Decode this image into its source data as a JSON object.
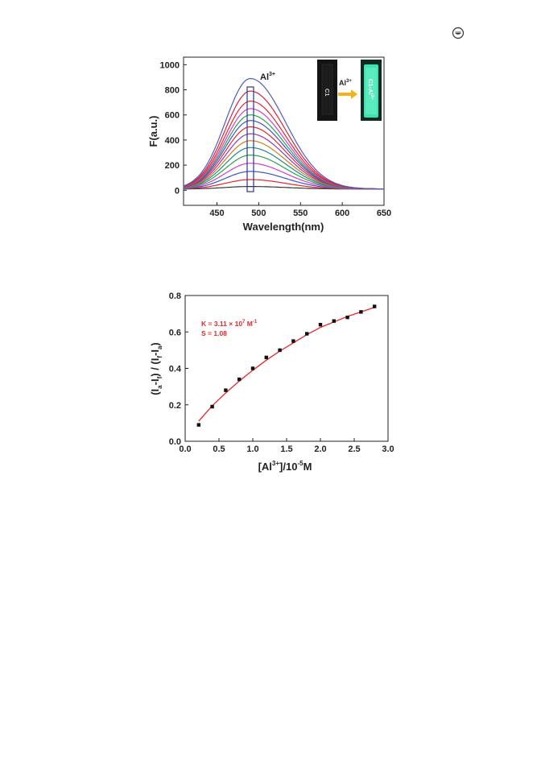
{
  "chart_data": [
    {
      "type": "line",
      "xlabel": "Wavelength(nm)",
      "ylabel": "F(a.u.)",
      "xlim": [
        410,
        650
      ],
      "ylim": [
        -120,
        1060
      ],
      "x_ticks": [
        450,
        500,
        550,
        600,
        650
      ],
      "y_ticks": [
        0,
        200,
        400,
        600,
        800,
        1000
      ],
      "peak_wavelength": 490,
      "peak_intensities": [
        20,
        75,
        140,
        205,
        270,
        330,
        385,
        440,
        495,
        545,
        590,
        640,
        700,
        780,
        880
      ],
      "series_colors": [
        "#333333",
        "#e8262b",
        "#3a53c9",
        "#d43cd0",
        "#27a34a",
        "#1f8a8a",
        "#d67a1a",
        "#8c3bb6",
        "#e8262b",
        "#3a53c9",
        "#27a34a",
        "#d43cd0",
        "#e8262b",
        "#d0263e",
        "#4a60c0"
      ],
      "annotations": {
        "ion_label": "Al",
        "ion_superscript": "3+"
      },
      "inset": {
        "left_vial_label": "C1",
        "arrow_label": "Al",
        "arrow_superscript": "3+",
        "right_vial_label": "C1-Al",
        "right_vial_superscript": "3+"
      }
    },
    {
      "type": "scatter",
      "xlabel_main": "[Al",
      "xlabel_sup": "3+",
      "xlabel_mid": "]/10",
      "xlabel_sup2": "-5",
      "xlabel_end": "M",
      "ylabel": "(I_a - I_f) / (I_f - I_a)",
      "ylabel_parts": {
        "p1": "(I",
        "s1": "a",
        "p2": "-I",
        "s2": "f",
        "p3": ") / (I",
        "s3": "f",
        "p4": "-I",
        "s4": "a",
        "p5": ")"
      },
      "xlim": [
        0,
        3.0
      ],
      "ylim": [
        0,
        0.8
      ],
      "x_ticks": [
        "0.0",
        "0.5",
        "1.0",
        "1.5",
        "2.0",
        "2.5",
        "3.0"
      ],
      "y_ticks": [
        "0.0",
        "0.2",
        "0.4",
        "0.6",
        "0.8"
      ],
      "points": {
        "x": [
          0.2,
          0.4,
          0.6,
          0.8,
          1.0,
          1.2,
          1.4,
          1.6,
          1.8,
          2.0,
          2.2,
          2.4,
          2.6,
          2.8
        ],
        "y": [
          0.09,
          0.19,
          0.28,
          0.34,
          0.4,
          0.46,
          0.5,
          0.55,
          0.59,
          0.64,
          0.66,
          0.68,
          0.71,
          0.74
        ]
      },
      "fit_curve": {
        "x": [
          0.2,
          0.4,
          0.6,
          0.8,
          1.0,
          1.2,
          1.4,
          1.6,
          1.8,
          2.0,
          2.2,
          2.4,
          2.6,
          2.8
        ],
        "y": [
          0.11,
          0.195,
          0.265,
          0.33,
          0.39,
          0.445,
          0.495,
          0.54,
          0.585,
          0.625,
          0.655,
          0.685,
          0.71,
          0.735
        ]
      },
      "marker_color": "#111111",
      "fit_color": "#e8262b",
      "annotation_k_prefix": "K = 3.11 × 10",
      "annotation_k_sup": "7",
      "annotation_k_suffix": " M",
      "annotation_k_sup2": "-1",
      "annotation_s": "S = 1.08"
    }
  ]
}
